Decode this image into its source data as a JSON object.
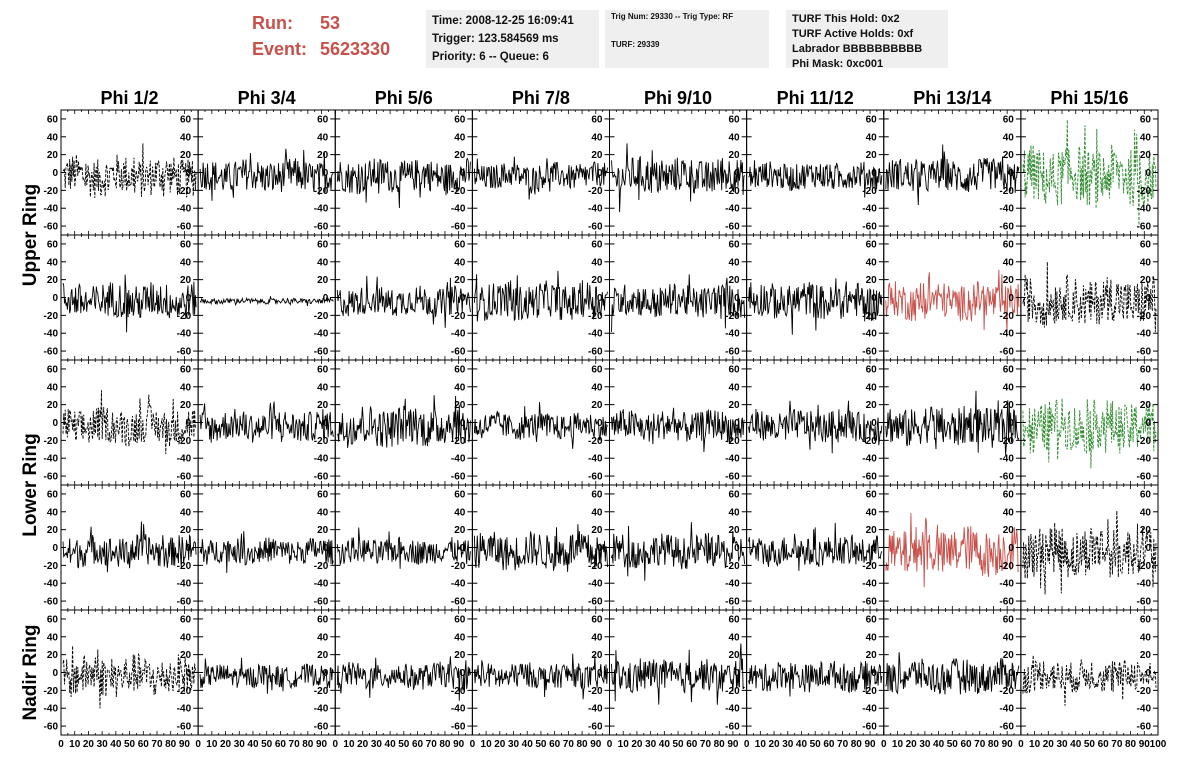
{
  "header": {
    "run_label": "Run:",
    "run_value": "53",
    "event_label": "Event:",
    "event_value": "5623330",
    "time": "Time: 2008-12-25 16:09:41",
    "trigger": "Trigger: 123.584569 ms",
    "priority": "Priority: 6 -- Queue: 6",
    "trig_num": "Trig Num: 29330 -- Trig Type: RF",
    "turf": "TURF: 29339",
    "turf_this_hold": "TURF This Hold: 0x2",
    "turf_active_holds": "TURF Active Holds: 0xf",
    "labrador": "Labrador BBBBBBBBBB",
    "phi_mask": "Phi Mask: 0xc001"
  },
  "colors": {
    "red_trace": "#c8504a",
    "green_trace": "#2e8b2e",
    "black_trace": "#000000"
  },
  "chart_data": {
    "type": "line",
    "columns": [
      "Phi 1/2",
      "Phi 3/4",
      "Phi 5/6",
      "Phi 7/8",
      "Phi 9/10",
      "Phi 11/12",
      "Phi 13/14",
      "Phi 15/16"
    ],
    "ring_labels": [
      "Upper Ring",
      "Lower Ring",
      "Nadir Ring"
    ],
    "ylim": [
      -70,
      70
    ],
    "yticks": [
      -60,
      -40,
      -20,
      0,
      20,
      40,
      60
    ],
    "xlim": [
      0,
      100
    ],
    "xticks": [
      0,
      10,
      20,
      30,
      40,
      50,
      60,
      70,
      80,
      90,
      100
    ],
    "panels": [
      [
        {
          "style": "dashed",
          "color": "black",
          "amp": 22
        },
        {
          "style": "solid",
          "color": "black",
          "amp": 18
        },
        {
          "style": "solid",
          "color": "black",
          "amp": 18
        },
        {
          "style": "solid",
          "color": "black",
          "amp": 14
        },
        {
          "style": "solid",
          "color": "black",
          "amp": 20
        },
        {
          "style": "solid",
          "color": "black",
          "amp": 15
        },
        {
          "style": "solid",
          "color": "black",
          "amp": 18
        },
        {
          "style": "dashed",
          "color": "green",
          "amp": 32
        }
      ],
      [
        {
          "style": "solid",
          "color": "black",
          "amp": 20
        },
        {
          "style": "solid",
          "color": "black",
          "amp": 3
        },
        {
          "style": "solid",
          "color": "black",
          "amp": 16
        },
        {
          "style": "solid",
          "color": "black",
          "amp": 20
        },
        {
          "style": "solid",
          "color": "black",
          "amp": 18
        },
        {
          "style": "solid",
          "color": "black",
          "amp": 20
        },
        {
          "style": "solid",
          "color": "red",
          "amp": 20
        },
        {
          "style": "dashed",
          "color": "black",
          "amp": 26
        }
      ],
      [
        {
          "style": "dashed",
          "color": "black",
          "amp": 20
        },
        {
          "style": "solid",
          "color": "black",
          "amp": 17
        },
        {
          "style": "solid",
          "color": "black",
          "amp": 22
        },
        {
          "style": "solid",
          "color": "black",
          "amp": 14
        },
        {
          "style": "solid",
          "color": "black",
          "amp": 17
        },
        {
          "style": "solid",
          "color": "black",
          "amp": 17
        },
        {
          "style": "solid",
          "color": "black",
          "amp": 22
        },
        {
          "style": "dashed",
          "color": "green",
          "amp": 28
        }
      ],
      [
        {
          "style": "solid",
          "color": "black",
          "amp": 17
        },
        {
          "style": "solid",
          "color": "black",
          "amp": 14
        },
        {
          "style": "solid",
          "color": "black",
          "amp": 14
        },
        {
          "style": "solid",
          "color": "black",
          "amp": 20
        },
        {
          "style": "solid",
          "color": "black",
          "amp": 18
        },
        {
          "style": "solid",
          "color": "black",
          "amp": 16
        },
        {
          "style": "solid",
          "color": "red",
          "amp": 26
        },
        {
          "style": "dashed",
          "color": "black",
          "amp": 28
        }
      ],
      [
        {
          "style": "dashed",
          "color": "black",
          "amp": 22
        },
        {
          "style": "solid",
          "color": "black",
          "amp": 12
        },
        {
          "style": "solid",
          "color": "black",
          "amp": 14
        },
        {
          "style": "solid",
          "color": "black",
          "amp": 14
        },
        {
          "style": "solid",
          "color": "black",
          "amp": 18
        },
        {
          "style": "solid",
          "color": "black",
          "amp": 16
        },
        {
          "style": "solid",
          "color": "black",
          "amp": 18
        },
        {
          "style": "dashed",
          "color": "black",
          "amp": 18
        }
      ]
    ]
  }
}
